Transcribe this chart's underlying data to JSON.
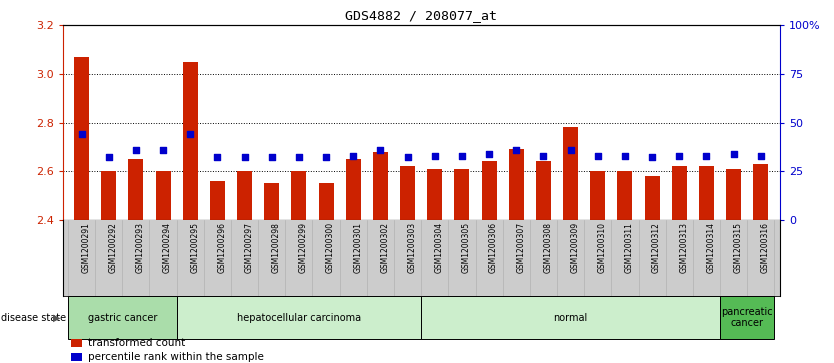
{
  "title": "GDS4882 / 208077_at",
  "samples": [
    "GSM1200291",
    "GSM1200292",
    "GSM1200293",
    "GSM1200294",
    "GSM1200295",
    "GSM1200296",
    "GSM1200297",
    "GSM1200298",
    "GSM1200299",
    "GSM1200300",
    "GSM1200301",
    "GSM1200302",
    "GSM1200303",
    "GSM1200304",
    "GSM1200305",
    "GSM1200306",
    "GSM1200307",
    "GSM1200308",
    "GSM1200309",
    "GSM1200310",
    "GSM1200311",
    "GSM1200312",
    "GSM1200313",
    "GSM1200314",
    "GSM1200315",
    "GSM1200316"
  ],
  "transformed_count": [
    3.07,
    2.6,
    2.65,
    2.6,
    3.05,
    2.56,
    2.6,
    2.55,
    2.6,
    2.55,
    2.65,
    2.68,
    2.62,
    2.61,
    2.61,
    2.64,
    2.69,
    2.64,
    2.78,
    2.6,
    2.6,
    2.58,
    2.62,
    2.62,
    2.61,
    2.63
  ],
  "percentile_rank": [
    44,
    32,
    36,
    36,
    44,
    32,
    32,
    32,
    32,
    32,
    33,
    36,
    32,
    33,
    33,
    34,
    36,
    33,
    36,
    33,
    33,
    32,
    33,
    33,
    34,
    33
  ],
  "disease_groups": [
    {
      "label": "gastric cancer",
      "start": 0,
      "end": 4,
      "color": "#aaddaa"
    },
    {
      "label": "hepatocellular carcinoma",
      "start": 4,
      "end": 13,
      "color": "#cceecc"
    },
    {
      "label": "normal",
      "start": 13,
      "end": 24,
      "color": "#cceecc"
    },
    {
      "label": "pancreatic\ncancer",
      "start": 24,
      "end": 26,
      "color": "#55bb55"
    }
  ],
  "bar_color": "#cc2200",
  "dot_color": "#0000cc",
  "ylim_left": [
    2.4,
    3.2
  ],
  "ylim_right": [
    0,
    100
  ],
  "yticks_left": [
    2.4,
    2.6,
    2.8,
    3.0,
    3.2
  ],
  "yticks_right": [
    0,
    25,
    50,
    75,
    100
  ],
  "ytick_labels_right": [
    "0",
    "25",
    "50",
    "75",
    "100%"
  ],
  "grid_values": [
    2.6,
    2.8,
    3.0
  ],
  "bar_bottom": 2.4,
  "bar_width": 0.55,
  "xtick_bg_color": "#cccccc",
  "group_border_color": "black",
  "legend_items": [
    {
      "color": "#cc2200",
      "label": "transformed count"
    },
    {
      "color": "#0000cc",
      "label": "percentile rank within the sample"
    }
  ],
  "fig_width": 8.34,
  "fig_height": 3.63,
  "dpi": 100
}
